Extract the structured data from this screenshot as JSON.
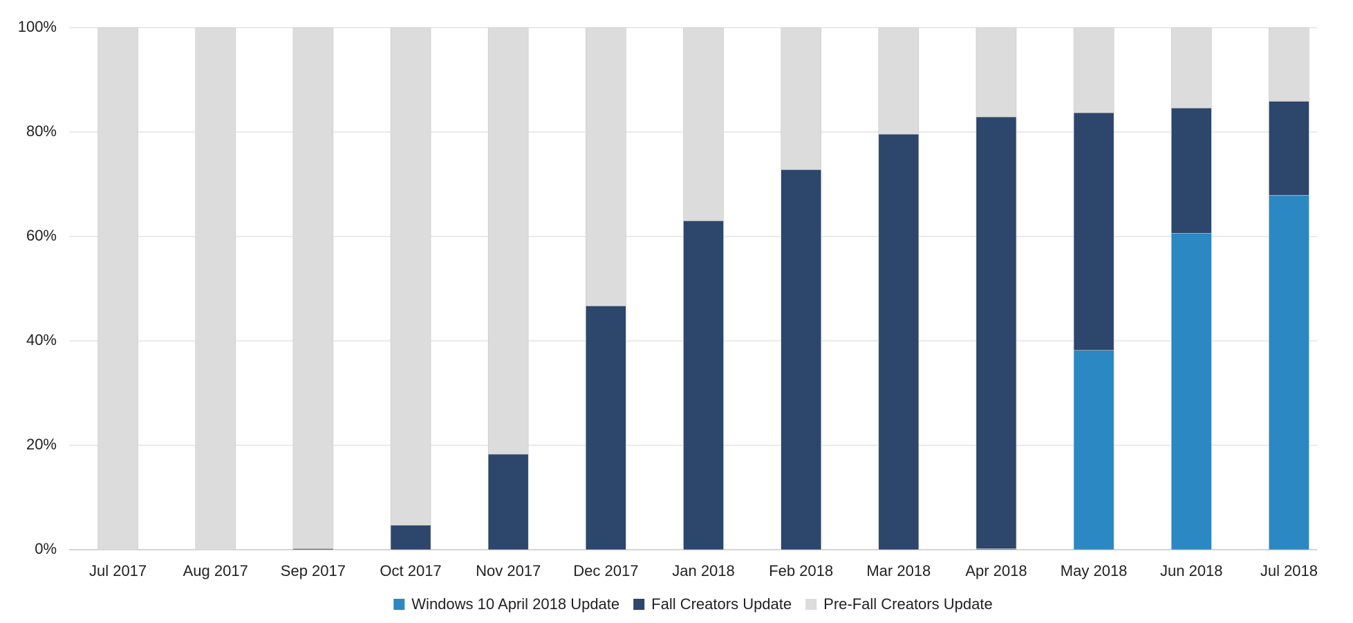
{
  "chart_data": {
    "type": "stacked_bar",
    "categories": [
      "Jul 2017",
      "Aug 2017",
      "Sep 2017",
      "Oct 2017",
      "Nov 2017",
      "Dec 2017",
      "Jan 2018",
      "Feb 2018",
      "Mar 2018",
      "Apr 2018",
      "May 2018",
      "Jun 2018",
      "Jul 2018"
    ],
    "series": [
      {
        "name": "Windows 10 April 2018 Update",
        "color": "#2b88c2",
        "values": [
          0,
          0,
          0,
          0,
          0,
          0,
          0,
          0,
          0,
          0.2,
          38.2,
          60.6,
          67.9
        ]
      },
      {
        "name": "Fall Creators Update",
        "color": "#2c466c",
        "values": [
          0,
          0,
          0.2,
          4.7,
          18.3,
          46.7,
          63.0,
          72.8,
          79.6,
          82.7,
          45.5,
          24.0,
          18.0
        ]
      },
      {
        "name": "Pre-Fall Creators Update",
        "color": "#dcdcdc",
        "values": [
          100,
          100,
          99.8,
          95.3,
          81.7,
          53.3,
          37.0,
          27.2,
          20.4,
          17.1,
          16.3,
          15.4,
          14.1
        ]
      }
    ],
    "ylim": [
      0,
      100
    ],
    "yticks": [
      {
        "value": 0,
        "label": "0%"
      },
      {
        "value": 20,
        "label": "20%"
      },
      {
        "value": 40,
        "label": "40%"
      },
      {
        "value": 60,
        "label": "60%"
      },
      {
        "value": 80,
        "label": "80%"
      },
      {
        "value": 100,
        "label": "100%"
      }
    ],
    "grid": true,
    "legend": "bottom"
  }
}
